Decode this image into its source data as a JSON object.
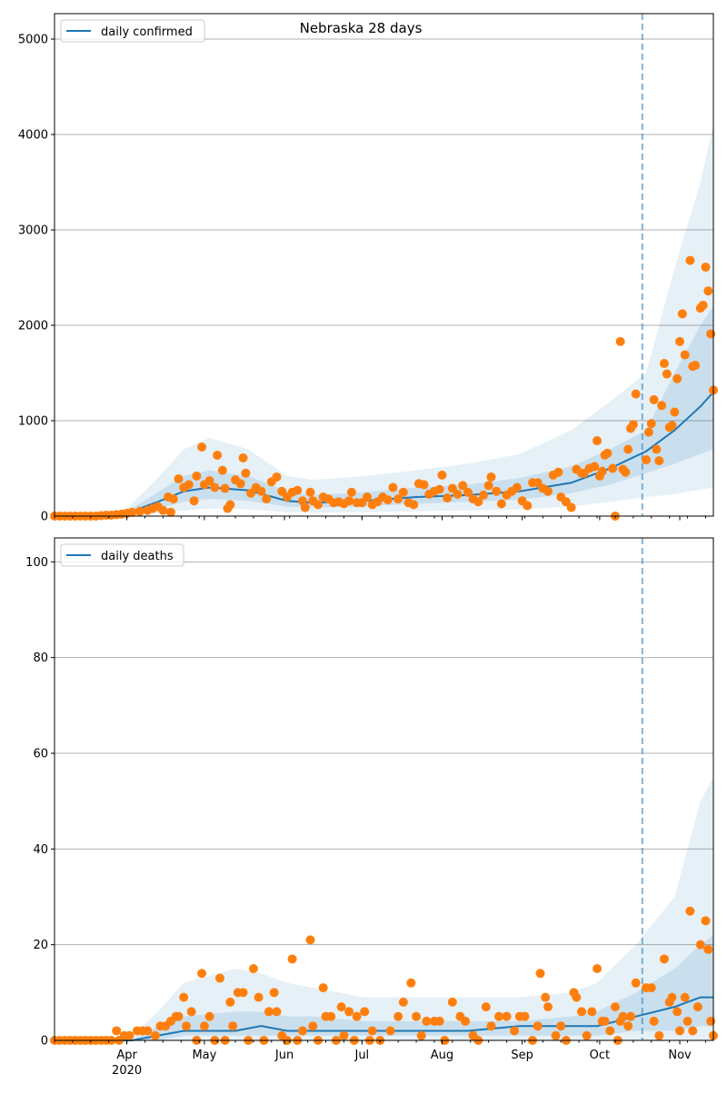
{
  "chart_data": [
    {
      "type": "scatter",
      "title": "Nebraska 28 days",
      "legend": {
        "label": "daily confirmed",
        "placement": "top-left"
      },
      "ylim": [
        0,
        5267
      ],
      "yticks": [
        0,
        1000,
        2000,
        3000,
        4000,
        5000
      ],
      "grid": "y",
      "x_unit": "days since 2020-03-04",
      "xlim": [
        0,
        255
      ],
      "xticks": [
        {
          "day": 28,
          "label": "Apr",
          "sub": "2020"
        },
        {
          "day": 58,
          "label": "May"
        },
        {
          "day": 89,
          "label": "Jun"
        },
        {
          "day": 119,
          "label": "Jul"
        },
        {
          "day": 150,
          "label": "Aug"
        },
        {
          "day": 181,
          "label": "Sep"
        },
        {
          "day": 211,
          "label": "Oct"
        },
        {
          "day": 242,
          "label": "Nov"
        }
      ],
      "forecast_start_day": 227.5,
      "colors": {
        "line": "#1f77b4",
        "points": "#ff7f0e",
        "band": "#1f77b4",
        "grid": "#b0b0b0"
      },
      "median": {
        "days": [
          0,
          20,
          28,
          40,
          50,
          60,
          75,
          90,
          100,
          120,
          140,
          160,
          180,
          200,
          215,
          229,
          240,
          250,
          255
        ],
        "values": [
          0,
          0,
          30,
          150,
          260,
          300,
          270,
          160,
          140,
          160,
          200,
          220,
          260,
          350,
          500,
          680,
          900,
          1150,
          1300
        ]
      },
      "bands": {
        "q05": [
          0,
          0,
          5,
          30,
          60,
          80,
          70,
          40,
          35,
          40,
          50,
          60,
          70,
          100,
          150,
          200,
          230,
          280,
          300
        ],
        "q25": [
          0,
          0,
          15,
          80,
          150,
          180,
          160,
          100,
          90,
          100,
          130,
          150,
          170,
          240,
          330,
          450,
          550,
          650,
          700
        ],
        "q75": [
          0,
          5,
          50,
          250,
          420,
          480,
          420,
          260,
          220,
          250,
          300,
          330,
          400,
          520,
          700,
          900,
          1500,
          2000,
          2200
        ],
        "q95": [
          0,
          10,
          80,
          400,
          700,
          820,
          700,
          420,
          380,
          420,
          480,
          550,
          650,
          900,
          1200,
          1500,
          2600,
          3500,
          4100
        ]
      },
      "points": [
        [
          0,
          0
        ],
        [
          2,
          0
        ],
        [
          4,
          0
        ],
        [
          6,
          0
        ],
        [
          8,
          0
        ],
        [
          10,
          0
        ],
        [
          12,
          0
        ],
        [
          14,
          0
        ],
        [
          16,
          0
        ],
        [
          18,
          5
        ],
        [
          20,
          10
        ],
        [
          22,
          10
        ],
        [
          24,
          15
        ],
        [
          26,
          20
        ],
        [
          28,
          30
        ],
        [
          30,
          40
        ],
        [
          33,
          50
        ],
        [
          36,
          60
        ],
        [
          38,
          80
        ],
        [
          40,
          100
        ],
        [
          42,
          60
        ],
        [
          44,
          200
        ],
        [
          45,
          40
        ],
        [
          46,
          180
        ],
        [
          48,
          390
        ],
        [
          50,
          300
        ],
        [
          52,
          330
        ],
        [
          54,
          160
        ],
        [
          55,
          420
        ],
        [
          57,
          724
        ],
        [
          58,
          330
        ],
        [
          60,
          370
        ],
        [
          62,
          300
        ],
        [
          63,
          638
        ],
        [
          65,
          480
        ],
        [
          66,
          290
        ],
        [
          67,
          80
        ],
        [
          68,
          120
        ],
        [
          70,
          380
        ],
        [
          72,
          340
        ],
        [
          73,
          610
        ],
        [
          74,
          450
        ],
        [
          76,
          240
        ],
        [
          78,
          300
        ],
        [
          80,
          260
        ],
        [
          82,
          180
        ],
        [
          84,
          360
        ],
        [
          86,
          410
        ],
        [
          88,
          260
        ],
        [
          90,
          200
        ],
        [
          92,
          250
        ],
        [
          94,
          270
        ],
        [
          96,
          160
        ],
        [
          97,
          90
        ],
        [
          99,
          250
        ],
        [
          100,
          160
        ],
        [
          102,
          120
        ],
        [
          104,
          200
        ],
        [
          106,
          180
        ],
        [
          108,
          140
        ],
        [
          110,
          150
        ],
        [
          112,
          130
        ],
        [
          114,
          160
        ],
        [
          115,
          250
        ],
        [
          117,
          140
        ],
        [
          119,
          140
        ],
        [
          121,
          200
        ],
        [
          123,
          120
        ],
        [
          125,
          150
        ],
        [
          127,
          200
        ],
        [
          129,
          170
        ],
        [
          131,
          300
        ],
        [
          133,
          180
        ],
        [
          135,
          250
        ],
        [
          137,
          140
        ],
        [
          139,
          120
        ],
        [
          141,
          340
        ],
        [
          143,
          330
        ],
        [
          145,
          230
        ],
        [
          147,
          260
        ],
        [
          149,
          280
        ],
        [
          150,
          430
        ],
        [
          152,
          190
        ],
        [
          154,
          290
        ],
        [
          156,
          230
        ],
        [
          158,
          320
        ],
        [
          160,
          250
        ],
        [
          162,
          180
        ],
        [
          164,
          150
        ],
        [
          166,
          220
        ],
        [
          168,
          320
        ],
        [
          169,
          410
        ],
        [
          171,
          260
        ],
        [
          173,
          130
        ],
        [
          175,
          220
        ],
        [
          177,
          260
        ],
        [
          179,
          300
        ],
        [
          181,
          160
        ],
        [
          183,
          110
        ],
        [
          185,
          350
        ],
        [
          187,
          350
        ],
        [
          189,
          290
        ],
        [
          191,
          260
        ],
        [
          193,
          430
        ],
        [
          195,
          460
        ],
        [
          196,
          200
        ],
        [
          198,
          150
        ],
        [
          200,
          90
        ],
        [
          202,
          490
        ],
        [
          204,
          450
        ],
        [
          205,
          450
        ],
        [
          207,
          500
        ],
        [
          209,
          520
        ],
        [
          210,
          790
        ],
        [
          211,
          420
        ],
        [
          212,
          470
        ],
        [
          213,
          640
        ],
        [
          214,
          660
        ],
        [
          216,
          500
        ],
        [
          217,
          0
        ],
        [
          219,
          1830
        ],
        [
          220,
          490
        ],
        [
          221,
          460
        ],
        [
          222,
          700
        ],
        [
          223,
          920
        ],
        [
          224,
          960
        ],
        [
          225,
          1280
        ],
        [
          229,
          590
        ],
        [
          230,
          880
        ],
        [
          231,
          970
        ],
        [
          232,
          1220
        ],
        [
          233,
          700
        ],
        [
          234,
          580
        ],
        [
          235,
          1160
        ],
        [
          236,
          1600
        ],
        [
          237,
          1490
        ],
        [
          238,
          930
        ],
        [
          239,
          950
        ],
        [
          240,
          1090
        ],
        [
          241,
          1440
        ],
        [
          242,
          1830
        ],
        [
          243,
          2120
        ],
        [
          244,
          1690
        ],
        [
          246,
          2680
        ],
        [
          247,
          1570
        ],
        [
          248,
          1580
        ],
        [
          250,
          2180
        ],
        [
          251,
          2210
        ],
        [
          252,
          2610
        ],
        [
          253,
          2360
        ],
        [
          254,
          1910
        ],
        [
          255,
          1320
        ]
      ]
    },
    {
      "type": "scatter",
      "legend": {
        "label": "daily deaths",
        "placement": "top-left"
      },
      "ylim": [
        0,
        105
      ],
      "yticks": [
        0,
        20,
        40,
        60,
        80,
        100
      ],
      "grid": "y",
      "x_unit": "days since 2020-03-04",
      "xlim": [
        0,
        255
      ],
      "xticks": [
        {
          "day": 28,
          "label": "Apr",
          "sub": "2020"
        },
        {
          "day": 58,
          "label": "May"
        },
        {
          "day": 89,
          "label": "Jun"
        },
        {
          "day": 119,
          "label": "Jul"
        },
        {
          "day": 150,
          "label": "Aug"
        },
        {
          "day": 181,
          "label": "Sep"
        },
        {
          "day": 211,
          "label": "Oct"
        },
        {
          "day": 242,
          "label": "Nov"
        }
      ],
      "forecast_start_day": 227.5,
      "colors": {
        "line": "#1f77b4",
        "points": "#ff7f0e",
        "band": "#1f77b4",
        "grid": "#b0b0b0"
      },
      "median": {
        "days": [
          0,
          30,
          40,
          50,
          70,
          80,
          90,
          100,
          120,
          140,
          160,
          180,
          200,
          210,
          225,
          240,
          250,
          255
        ],
        "values": [
          0,
          0,
          1,
          2,
          2,
          3,
          2,
          2,
          2,
          2,
          2,
          3,
          3,
          3,
          5,
          7,
          9,
          9
        ]
      },
      "bands": {
        "q05": [
          0,
          0,
          0,
          0,
          0,
          0,
          0,
          0,
          0,
          0,
          0,
          0,
          0,
          0,
          0,
          0,
          0,
          0
        ],
        "q25": [
          0,
          0,
          0,
          1,
          1,
          1,
          1,
          1,
          1,
          1,
          1,
          1,
          1,
          1,
          2,
          2,
          3,
          3
        ],
        "q75": [
          0,
          0,
          3,
          5,
          6,
          6,
          5,
          5,
          4,
          4,
          4,
          4,
          5,
          6,
          10,
          15,
          20,
          22
        ],
        "q95": [
          0,
          1,
          6,
          12,
          15,
          14,
          12,
          11,
          9,
          9,
          9,
          9,
          10,
          12,
          20,
          30,
          50,
          55
        ]
      },
      "points": [
        [
          0,
          0
        ],
        [
          2,
          0
        ],
        [
          4,
          0
        ],
        [
          6,
          0
        ],
        [
          8,
          0
        ],
        [
          10,
          0
        ],
        [
          12,
          0
        ],
        [
          14,
          0
        ],
        [
          16,
          0
        ],
        [
          18,
          0
        ],
        [
          20,
          0
        ],
        [
          22,
          0
        ],
        [
          24,
          2
        ],
        [
          25,
          0
        ],
        [
          27,
          1
        ],
        [
          29,
          1
        ],
        [
          32,
          2
        ],
        [
          34,
          2
        ],
        [
          36,
          2
        ],
        [
          39,
          1
        ],
        [
          41,
          3
        ],
        [
          43,
          3
        ],
        [
          45,
          4
        ],
        [
          47,
          5
        ],
        [
          48,
          5
        ],
        [
          50,
          9
        ],
        [
          51,
          3
        ],
        [
          53,
          6
        ],
        [
          55,
          0
        ],
        [
          57,
          14
        ],
        [
          58,
          3
        ],
        [
          60,
          5
        ],
        [
          62,
          0
        ],
        [
          64,
          13
        ],
        [
          66,
          0
        ],
        [
          68,
          8
        ],
        [
          69,
          3
        ],
        [
          71,
          10
        ],
        [
          73,
          10
        ],
        [
          75,
          0
        ],
        [
          77,
          15
        ],
        [
          79,
          9
        ],
        [
          81,
          0
        ],
        [
          83,
          6
        ],
        [
          85,
          10
        ],
        [
          86,
          6
        ],
        [
          88,
          1
        ],
        [
          90,
          0
        ],
        [
          92,
          17
        ],
        [
          94,
          0
        ],
        [
          96,
          2
        ],
        [
          99,
          21
        ],
        [
          100,
          3
        ],
        [
          102,
          0
        ],
        [
          104,
          11
        ],
        [
          105,
          5
        ],
        [
          107,
          5
        ],
        [
          109,
          0
        ],
        [
          111,
          7
        ],
        [
          112,
          1
        ],
        [
          114,
          6
        ],
        [
          116,
          0
        ],
        [
          117,
          5
        ],
        [
          120,
          6
        ],
        [
          122,
          0
        ],
        [
          123,
          2
        ],
        [
          126,
          0
        ],
        [
          130,
          2
        ],
        [
          133,
          5
        ],
        [
          135,
          8
        ],
        [
          138,
          12
        ],
        [
          140,
          5
        ],
        [
          142,
          1
        ],
        [
          144,
          4
        ],
        [
          147,
          4
        ],
        [
          149,
          4
        ],
        [
          151,
          0
        ],
        [
          154,
          8
        ],
        [
          157,
          5
        ],
        [
          159,
          4
        ],
        [
          162,
          1
        ],
        [
          164,
          0
        ],
        [
          167,
          7
        ],
        [
          169,
          3
        ],
        [
          172,
          5
        ],
        [
          175,
          5
        ],
        [
          178,
          2
        ],
        [
          180,
          5
        ],
        [
          182,
          5
        ],
        [
          185,
          0
        ],
        [
          187,
          3
        ],
        [
          188,
          14
        ],
        [
          190,
          9
        ],
        [
          191,
          7
        ],
        [
          194,
          1
        ],
        [
          196,
          3
        ],
        [
          198,
          0
        ],
        [
          201,
          10
        ],
        [
          202,
          9
        ],
        [
          204,
          6
        ],
        [
          206,
          1
        ],
        [
          208,
          6
        ],
        [
          210,
          15
        ],
        [
          212,
          4
        ],
        [
          213,
          4
        ],
        [
          215,
          2
        ],
        [
          217,
          7
        ],
        [
          218,
          0
        ],
        [
          219,
          4
        ],
        [
          220,
          5
        ],
        [
          222,
          3
        ],
        [
          223,
          5
        ],
        [
          225,
          12
        ],
        [
          229,
          11
        ],
        [
          231,
          11
        ],
        [
          232,
          4
        ],
        [
          234,
          1
        ],
        [
          236,
          17
        ],
        [
          238,
          8
        ],
        [
          239,
          9
        ],
        [
          241,
          6
        ],
        [
          242,
          2
        ],
        [
          244,
          9
        ],
        [
          245,
          4
        ],
        [
          246,
          27
        ],
        [
          247,
          2
        ],
        [
          249,
          7
        ],
        [
          250,
          20
        ],
        [
          252,
          25
        ],
        [
          253,
          19
        ],
        [
          254,
          4
        ],
        [
          255,
          1
        ]
      ]
    }
  ]
}
